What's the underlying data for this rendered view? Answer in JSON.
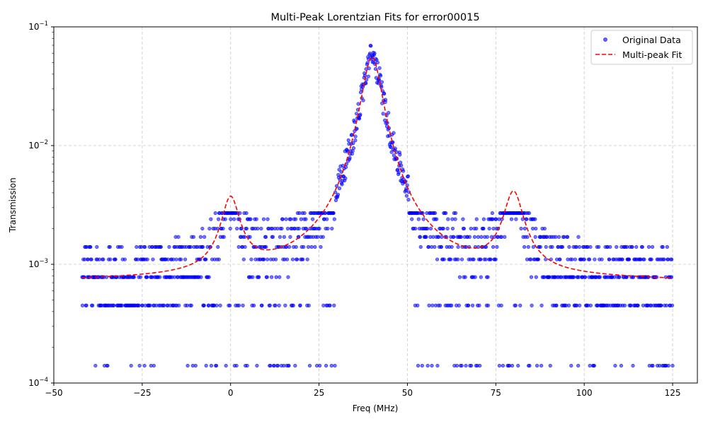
{
  "chart_data": {
    "type": "scatter",
    "title": "Multi-Peak Lorentzian Fits for error00015",
    "xlabel": "Freq (MHz)",
    "ylabel": "Transmission",
    "xlim": [
      -50,
      132
    ],
    "ylim": [
      0.0001,
      0.1
    ],
    "yscale": "log",
    "grid": true,
    "legend_position": "top-right",
    "x_ticks": [
      -50,
      -25,
      0,
      25,
      50,
      75,
      100,
      125
    ],
    "x_tick_labels": [
      "−50",
      "−25",
      "0",
      "25",
      "50",
      "75",
      "100",
      "125"
    ],
    "y_ticks": [
      0.0001,
      0.001,
      0.01,
      0.1
    ],
    "y_tick_labels": [
      {
        "base": "10",
        "exp": "−4"
      },
      {
        "base": "10",
        "exp": "−3"
      },
      {
        "base": "10",
        "exp": "−2"
      },
      {
        "base": "10",
        "exp": "−1"
      }
    ],
    "x_range": [
      -42,
      125
    ],
    "baseline_levels": [
      0.00014,
      0.00045,
      0.00078,
      0.0011,
      0.0014,
      0.0017,
      0.002,
      0.0024,
      0.0027
    ],
    "series": [
      {
        "name": "Original Data",
        "kind": "scatter",
        "color": "#0000ff",
        "point_count": 1400
      },
      {
        "name": "Multi-peak Fit",
        "kind": "line",
        "style": "dashed",
        "color": "#ff0000",
        "background": 0.0007,
        "peaks": [
          {
            "center": 0,
            "amplitude": 0.0028,
            "hwhm": 2.6
          },
          {
            "center": 40,
            "amplitude": 0.055,
            "hwhm": 2.7
          },
          {
            "center": 80,
            "amplitude": 0.0032,
            "hwhm": 2.8
          }
        ]
      }
    ]
  }
}
